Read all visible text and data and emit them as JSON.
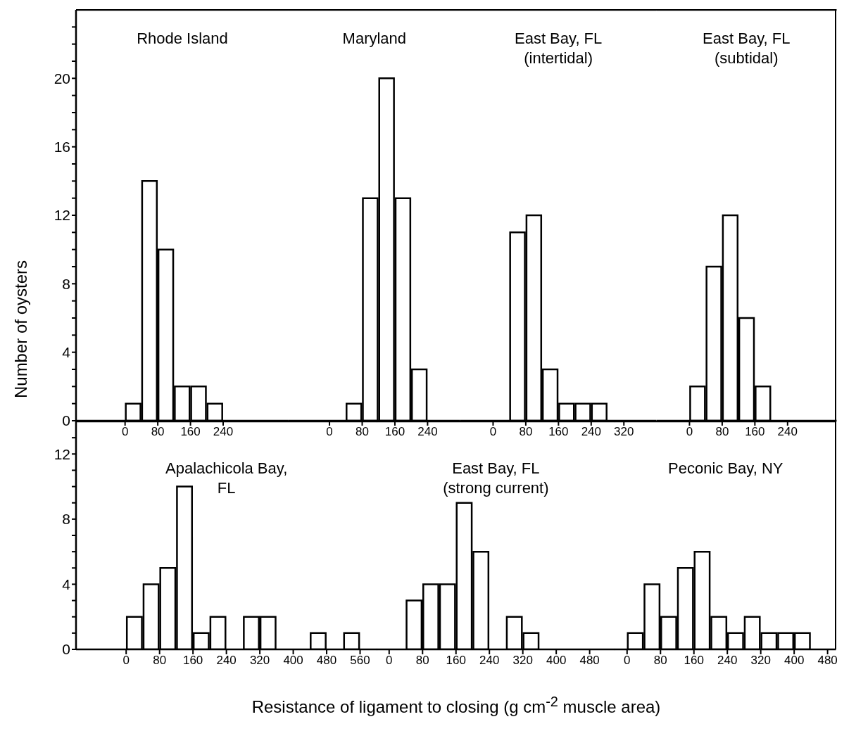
{
  "chart_data": [
    {
      "type": "histogram",
      "title": "Rhode Island",
      "ylabel": "Number of oysters",
      "bins": [
        0,
        40,
        80,
        120,
        160,
        200,
        240
      ],
      "values": [
        1,
        14,
        10,
        2,
        2,
        1
      ],
      "color": "#ffffff",
      "xlim": [
        -120,
        400
      ],
      "xticks": [
        0,
        80,
        160,
        240
      ],
      "ylim": [
        0,
        24
      ],
      "yticks": [
        0,
        {
          "value": 1,
          "label": null
        },
        {
          "value": 2,
          "label": null
        },
        {
          "value": 3,
          "label": null
        },
        4,
        {
          "value": 5,
          "label": null
        },
        {
          "value": 6,
          "label": null
        },
        {
          "value": 7,
          "label": null
        },
        8,
        {
          "value": 9,
          "label": null
        },
        {
          "value": 10,
          "label": null
        },
        {
          "value": 11,
          "label": null
        },
        12,
        {
          "value": 13,
          "label": null
        },
        {
          "value": 14,
          "label": null
        },
        {
          "value": 15,
          "label": null
        },
        16,
        {
          "value": 17,
          "label": null
        },
        {
          "value": 18,
          "label": null
        },
        {
          "value": 19,
          "label": null
        },
        20,
        {
          "value": 21,
          "label": null
        },
        {
          "value": 22,
          "label": null
        },
        {
          "value": 23,
          "label": null
        }
      ]
    },
    {
      "type": "histogram",
      "title": "Maryland",
      "bins": [
        40,
        80,
        120,
        160,
        200,
        240
      ],
      "values": [
        1,
        13,
        20,
        13,
        3
      ],
      "color": "#ffffff",
      "xlim": [
        -100,
        320
      ],
      "xticks": [
        0,
        80,
        160,
        240
      ],
      "ylim": [
        0,
        24
      ],
      "tick_labels": "x"
    },
    {
      "type": "histogram",
      "title": "East Bay, FL (intertidal)",
      "bins": [
        40,
        80,
        120,
        160,
        200,
        240,
        280
      ],
      "values": [
        11,
        12,
        3,
        1,
        1,
        1
      ],
      "color": "#ffffff",
      "xlim": [
        -80,
        400
      ],
      "xticks": [
        0,
        80,
        160,
        240,
        320
      ],
      "ylim": [
        0,
        24
      ],
      "tick_labels": "x"
    },
    {
      "type": "histogram",
      "title": "East Bay, FL (subtidal)",
      "bins": [
        0,
        40,
        80,
        120,
        160,
        200
      ],
      "values": [
        2,
        9,
        12,
        6,
        2
      ],
      "color": "#ffffff",
      "xlim": [
        -80,
        360
      ],
      "xticks": [
        0,
        80,
        160,
        240
      ],
      "ylim": [
        0,
        24
      ],
      "tick_labels": "x"
    },
    {
      "type": "histogram",
      "title": "Apalachicola Bay, FL",
      "bins": [
        0,
        40,
        80,
        120,
        160,
        200,
        240,
        280,
        320,
        360,
        400,
        440,
        480,
        520,
        560
      ],
      "values": [
        2,
        4,
        5,
        10,
        1,
        2,
        0,
        2,
        2,
        0,
        0,
        1,
        0,
        1
      ],
      "color": "#ffffff",
      "xlim": [
        -120,
        600
      ],
      "xticks": [
        0,
        80,
        160,
        240,
        320,
        400,
        480,
        560
      ],
      "ylim": [
        0,
        14
      ],
      "yticks": [
        0,
        {
          "value": 1,
          "label": null
        },
        {
          "value": 2,
          "label": null
        },
        {
          "value": 3,
          "label": null
        },
        4,
        {
          "value": 5,
          "label": null
        },
        {
          "value": 6,
          "label": null
        },
        {
          "value": 7,
          "label": null
        },
        8,
        {
          "value": 9,
          "label": null
        },
        {
          "value": 10,
          "label": null
        },
        {
          "value": 11,
          "label": null
        },
        12,
        {
          "value": 13,
          "label": null
        }
      ]
    },
    {
      "type": "histogram",
      "title": "East Bay, FL (strong current)",
      "xlabel": "Resistance of ligament to closing (g cm$^{-2}$ muscle area)",
      "bins": [
        40,
        80,
        120,
        160,
        200,
        240,
        280,
        320,
        360
      ],
      "values": [
        3,
        4,
        4,
        9,
        6,
        0,
        2,
        1
      ],
      "color": "#ffffff",
      "xlim": [
        -30,
        540
      ],
      "xticks": [
        0,
        80,
        160,
        240,
        320,
        400,
        480
      ],
      "ylim": [
        0,
        14
      ],
      "tick_labels": "x"
    },
    {
      "type": "histogram",
      "title": "Peconic Bay, NY",
      "bins": [
        0,
        40,
        80,
        120,
        160,
        200,
        240,
        280,
        320,
        360,
        400,
        440
      ],
      "values": [
        1,
        4,
        2,
        5,
        6,
        2,
        1,
        2,
        1,
        1,
        1
      ],
      "color": "#ffffff",
      "xlim": [
        -30,
        500
      ],
      "xticks": [
        0,
        80,
        160,
        240,
        320,
        400,
        480
      ],
      "ylim": [
        0,
        14
      ],
      "tick_labels": "x"
    }
  ]
}
